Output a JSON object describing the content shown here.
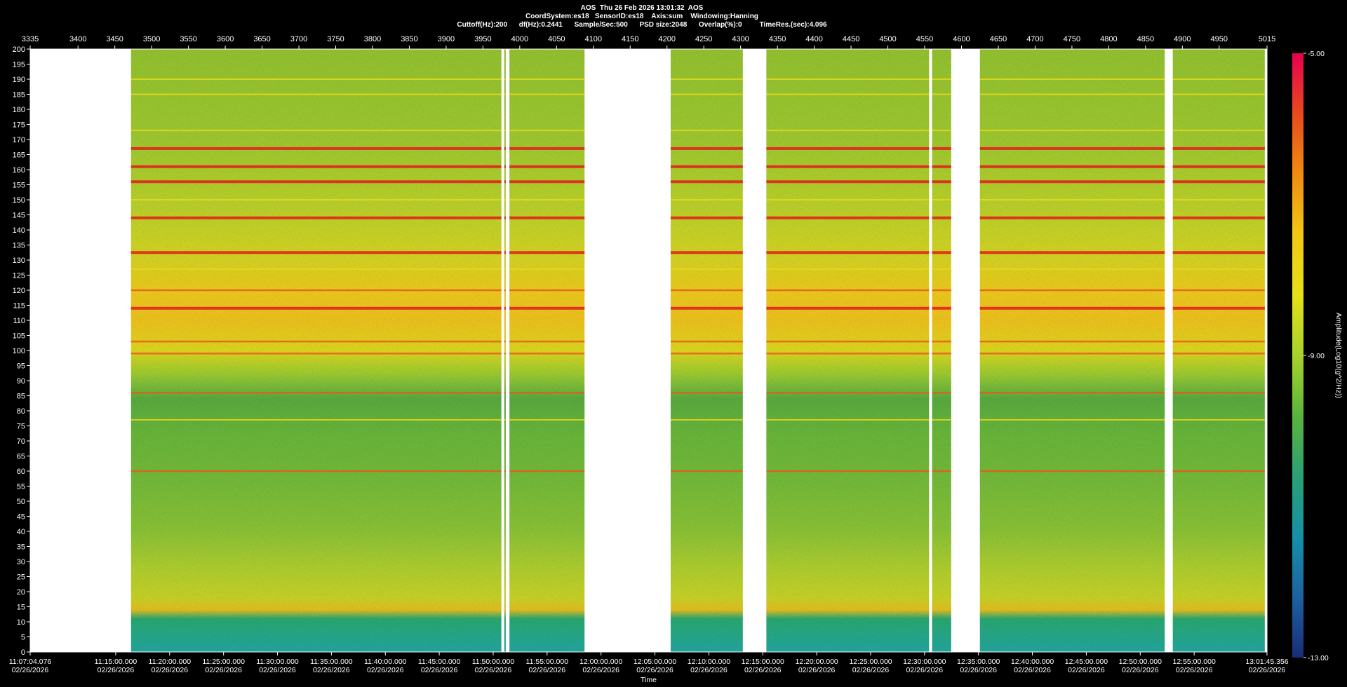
{
  "header": {
    "line1": "AOS  Thu 26 Feb 2026 13:01:32  AOS",
    "line2": "CoordSystem:es18   SensorID:es18    Axis:sum    Windowing:Hanning",
    "line3": "Cuttoff(Hz):200      df(Hz):0.2441      Sample/Sec:500      PSD size:2048      Overlap(%):0         TimeRes.(sec):4.096"
  },
  "chart_data": {
    "type": "heatmap",
    "xlabel": "Time",
    "ylabel": "",
    "ylim": [
      0,
      200
    ],
    "y_ticks": [
      0,
      5,
      10,
      15,
      20,
      25,
      30,
      35,
      40,
      45,
      50,
      55,
      60,
      65,
      70,
      75,
      80,
      85,
      90,
      95,
      100,
      105,
      110,
      115,
      120,
      125,
      130,
      135,
      140,
      145,
      150,
      155,
      160,
      165,
      170,
      175,
      180,
      185,
      190,
      195,
      200
    ],
    "top_axis_range": [
      3335,
      5015
    ],
    "top_axis_ticks": [
      3335,
      3400,
      3450,
      3500,
      3550,
      3600,
      3650,
      3700,
      3750,
      3800,
      3850,
      3900,
      3950,
      4000,
      4050,
      4100,
      4150,
      4200,
      4250,
      4300,
      4350,
      4400,
      4450,
      4500,
      4550,
      4600,
      4650,
      4700,
      4750,
      4800,
      4850,
      4900,
      4950,
      5015
    ],
    "time_ticks": [
      {
        "time": "11:07:04.076",
        "date": "02/26/2026"
      },
      {
        "time": "11:15:00.000",
        "date": "02/26/2026"
      },
      {
        "time": "11:20:00.000",
        "date": "02/26/2026"
      },
      {
        "time": "11:25:00.000",
        "date": "02/26/2026"
      },
      {
        "time": "11:30:00.000",
        "date": "02/26/2026"
      },
      {
        "time": "11:35:00.000",
        "date": "02/26/2026"
      },
      {
        "time": "11:40:00.000",
        "date": "02/26/2026"
      },
      {
        "time": "11:45:00.000",
        "date": "02/26/2026"
      },
      {
        "time": "11:50:00.000",
        "date": "02/26/2026"
      },
      {
        "time": "11:55:00.000",
        "date": "02/26/2026"
      },
      {
        "time": "12:00:00.000",
        "date": "02/26/2026"
      },
      {
        "time": "12:05:00.000",
        "date": "02/26/2026"
      },
      {
        "time": "12:10:00.000",
        "date": "02/26/2026"
      },
      {
        "time": "12:15:00.000",
        "date": "02/26/2026"
      },
      {
        "time": "12:20:00.000",
        "date": "02/26/2026"
      },
      {
        "time": "12:25:00.000",
        "date": "02/26/2026"
      },
      {
        "time": "12:30:00.000",
        "date": "02/26/2026"
      },
      {
        "time": "12:35:00.000",
        "date": "02/26/2026"
      },
      {
        "time": "12:40:00.000",
        "date": "02/26/2026"
      },
      {
        "time": "12:45:00.000",
        "date": "02/26/2026"
      },
      {
        "time": "12:50:00.000",
        "date": "02/26/2026"
      },
      {
        "time": "12:55:00.000",
        "date": "02/26/2026"
      },
      {
        "time": "13:01:45.356",
        "date": "02/26/2026"
      }
    ],
    "data_segments_top_axis": [
      [
        3472,
        3975
      ],
      [
        3979,
        3981
      ],
      [
        3986,
        4088
      ],
      [
        4205,
        4303
      ],
      [
        4335,
        4556
      ],
      [
        4560,
        4586
      ],
      [
        4625,
        4876
      ],
      [
        4887,
        5012
      ]
    ],
    "spectral_lines_hz": [
      {
        "hz": 167,
        "level": "high"
      },
      {
        "hz": 161,
        "level": "high"
      },
      {
        "hz": 156,
        "level": "high"
      },
      {
        "hz": 144,
        "level": "high"
      },
      {
        "hz": 132.5,
        "level": "high"
      },
      {
        "hz": 120,
        "level": "mid"
      },
      {
        "hz": 114,
        "level": "high"
      },
      {
        "hz": 103,
        "level": "mid"
      },
      {
        "hz": 99,
        "level": "mid"
      },
      {
        "hz": 86,
        "level": "mid"
      },
      {
        "hz": 60,
        "level": "mid"
      },
      {
        "hz": 190,
        "level": "low"
      },
      {
        "hz": 185,
        "level": "low"
      },
      {
        "hz": 173,
        "level": "low"
      },
      {
        "hz": 150,
        "level": "low"
      },
      {
        "hz": 127,
        "level": "low"
      },
      {
        "hz": 77,
        "level": "low"
      }
    ],
    "colorbar": {
      "label": "Amplitude(Log10(g^2/Hz))",
      "range": [
        -13.0,
        -5.0
      ],
      "ticks": [
        "-5.00",
        "-9.00",
        "-13.00"
      ],
      "colors": [
        "#e8004e",
        "#e84a1c",
        "#f08c10",
        "#f2c814",
        "#e6e018",
        "#a8d22c",
        "#5ab43c",
        "#2aa074",
        "#1690a8",
        "#1c62a0",
        "#1a2c78"
      ]
    }
  }
}
